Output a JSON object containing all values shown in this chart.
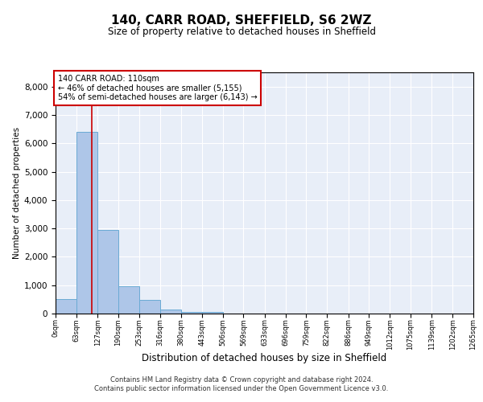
{
  "title": "140, CARR ROAD, SHEFFIELD, S6 2WZ",
  "subtitle": "Size of property relative to detached houses in Sheffield",
  "xlabel": "Distribution of detached houses by size in Sheffield",
  "ylabel": "Number of detached properties",
  "footer_line1": "Contains HM Land Registry data © Crown copyright and database right 2024.",
  "footer_line2": "Contains public sector information licensed under the Open Government Licence v3.0.",
  "annotation_line1": "140 CARR ROAD: 110sqm",
  "annotation_line2": "← 46% of detached houses are smaller (5,155)",
  "annotation_line3": "54% of semi-detached houses are larger (6,143) →",
  "property_sqm": 110,
  "bar_color": "#aec6e8",
  "bar_edge_color": "#6aaad4",
  "vline_color": "#cc0000",
  "annotation_box_edge_color": "#cc0000",
  "background_color": "#e8eef8",
  "bins": [
    0,
    63,
    127,
    190,
    253,
    316,
    380,
    443,
    506,
    569,
    633,
    696,
    759,
    822,
    886,
    949,
    1012,
    1075,
    1139,
    1202,
    1265
  ],
  "bin_labels": [
    "0sqm",
    "63sqm",
    "127sqm",
    "190sqm",
    "253sqm",
    "316sqm",
    "380sqm",
    "443sqm",
    "506sqm",
    "569sqm",
    "633sqm",
    "696sqm",
    "759sqm",
    "822sqm",
    "886sqm",
    "949sqm",
    "1012sqm",
    "1075sqm",
    "1139sqm",
    "1202sqm",
    "1265sqm"
  ],
  "values": [
    500,
    6400,
    2950,
    950,
    480,
    150,
    70,
    70,
    0,
    0,
    0,
    0,
    0,
    0,
    0,
    0,
    0,
    0,
    0,
    0
  ],
  "ylim": [
    0,
    8500
  ],
  "yticks": [
    0,
    1000,
    2000,
    3000,
    4000,
    5000,
    6000,
    7000,
    8000
  ]
}
